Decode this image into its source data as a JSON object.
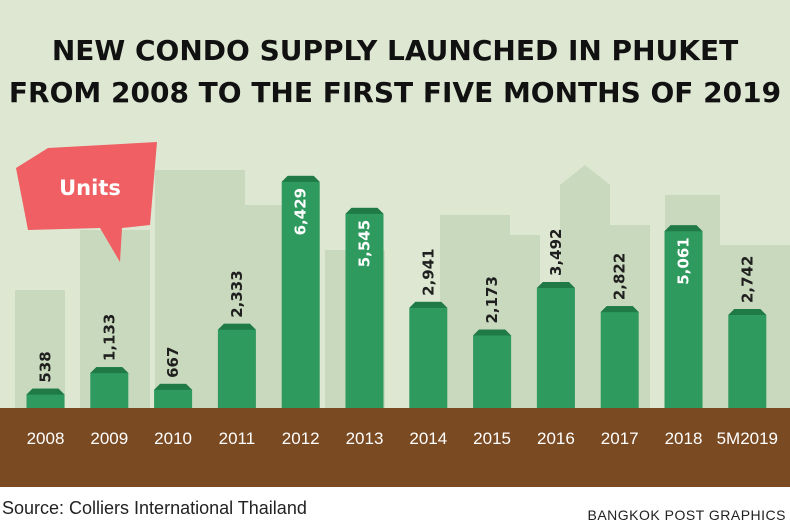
{
  "title_line1": "NEW CONDO SUPPLY LAUNCHED IN PHUKET",
  "title_line2": "FROM 2008 TO THE FIRST FIVE MONTHS OF 2019",
  "units_label": "Units",
  "source": "Source: Colliers International Thailand",
  "credit": "BANGKOK POST GRAPHICS",
  "colors": {
    "background": "#dde7d2",
    "buildings": "#c3d4b8",
    "bar": "#2e9a5e",
    "bar_top": "#1f7a46",
    "ground": "#7a4a22",
    "callout": "#ef5f63"
  },
  "chart_data": {
    "type": "bar",
    "categories": [
      "2008",
      "2009",
      "2010",
      "2011",
      "2012",
      "2013",
      "2014",
      "2015",
      "2016",
      "2017",
      "2018",
      "5M2019"
    ],
    "values": [
      538,
      1133,
      667,
      2333,
      6429,
      5545,
      2941,
      2173,
      3492,
      2822,
      5061,
      2742
    ],
    "value_labels": [
      "538",
      "1,133",
      "667",
      "2,333",
      "6,429",
      "5,545",
      "2,941",
      "2,173",
      "3,492",
      "2,822",
      "5,061",
      "2,742"
    ],
    "title": "NEW CONDO SUPPLY LAUNCHED IN PHUKET FROM 2008 TO THE FIRST FIVE MONTHS OF 2019",
    "ylabel": "Units",
    "ylim": [
      0,
      6500
    ],
    "grid": false,
    "legend": "none"
  }
}
